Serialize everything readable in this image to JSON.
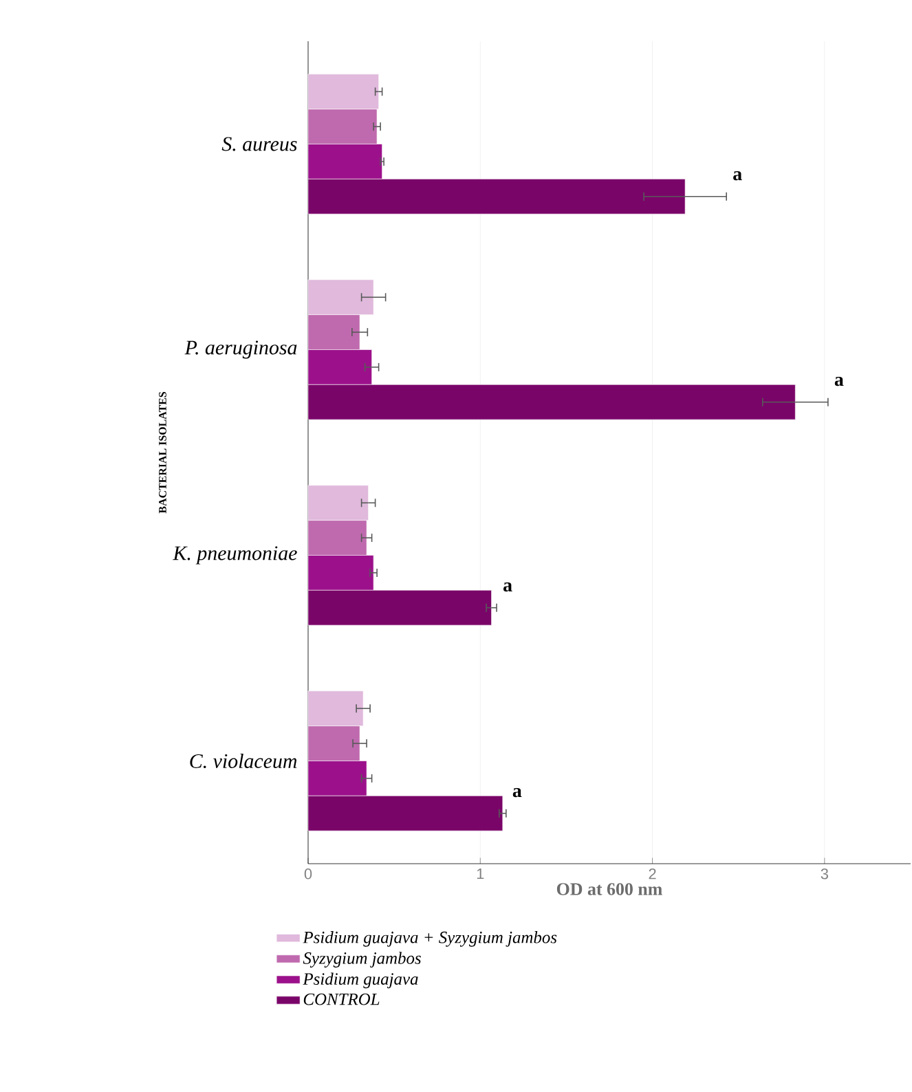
{
  "chart_data": {
    "type": "bar",
    "orientation": "horizontal",
    "xlabel": "OD at 600 nm",
    "ylabel": "BACTERIAL ISOLATES",
    "categories": [
      "S. aureus",
      "P. aeruginosa",
      "K. pneumoniae",
      "C. violaceum"
    ],
    "series": [
      {
        "name": "Psidium guajava + Syzygium jambos",
        "color": "#e0b9dc",
        "values": [
          0.41,
          0.38,
          0.35,
          0.32
        ],
        "errors": [
          0.02,
          0.07,
          0.04,
          0.04
        ]
      },
      {
        "name": "Syzygium jambos",
        "color": "#bf6aae",
        "values": [
          0.4,
          0.3,
          0.34,
          0.3
        ],
        "errors": [
          0.02,
          0.045,
          0.03,
          0.04
        ]
      },
      {
        "name": "Psidium guajava",
        "color": "#9c118b",
        "values": [
          0.43,
          0.37,
          0.38,
          0.34
        ],
        "errors": [
          0.01,
          0.04,
          0.02,
          0.03
        ]
      },
      {
        "name": "CONTROL",
        "color": "#7a0569",
        "values": [
          2.19,
          2.83,
          1.065,
          1.13
        ],
        "errors": [
          0.24,
          0.19,
          0.03,
          0.02
        ]
      }
    ],
    "xlim": [
      0,
      3.5
    ],
    "xticks": [
      0,
      1,
      2,
      3
    ],
    "grid": "x",
    "legend": "bottom",
    "annotations": [
      "a",
      "a",
      "a",
      "a"
    ]
  }
}
